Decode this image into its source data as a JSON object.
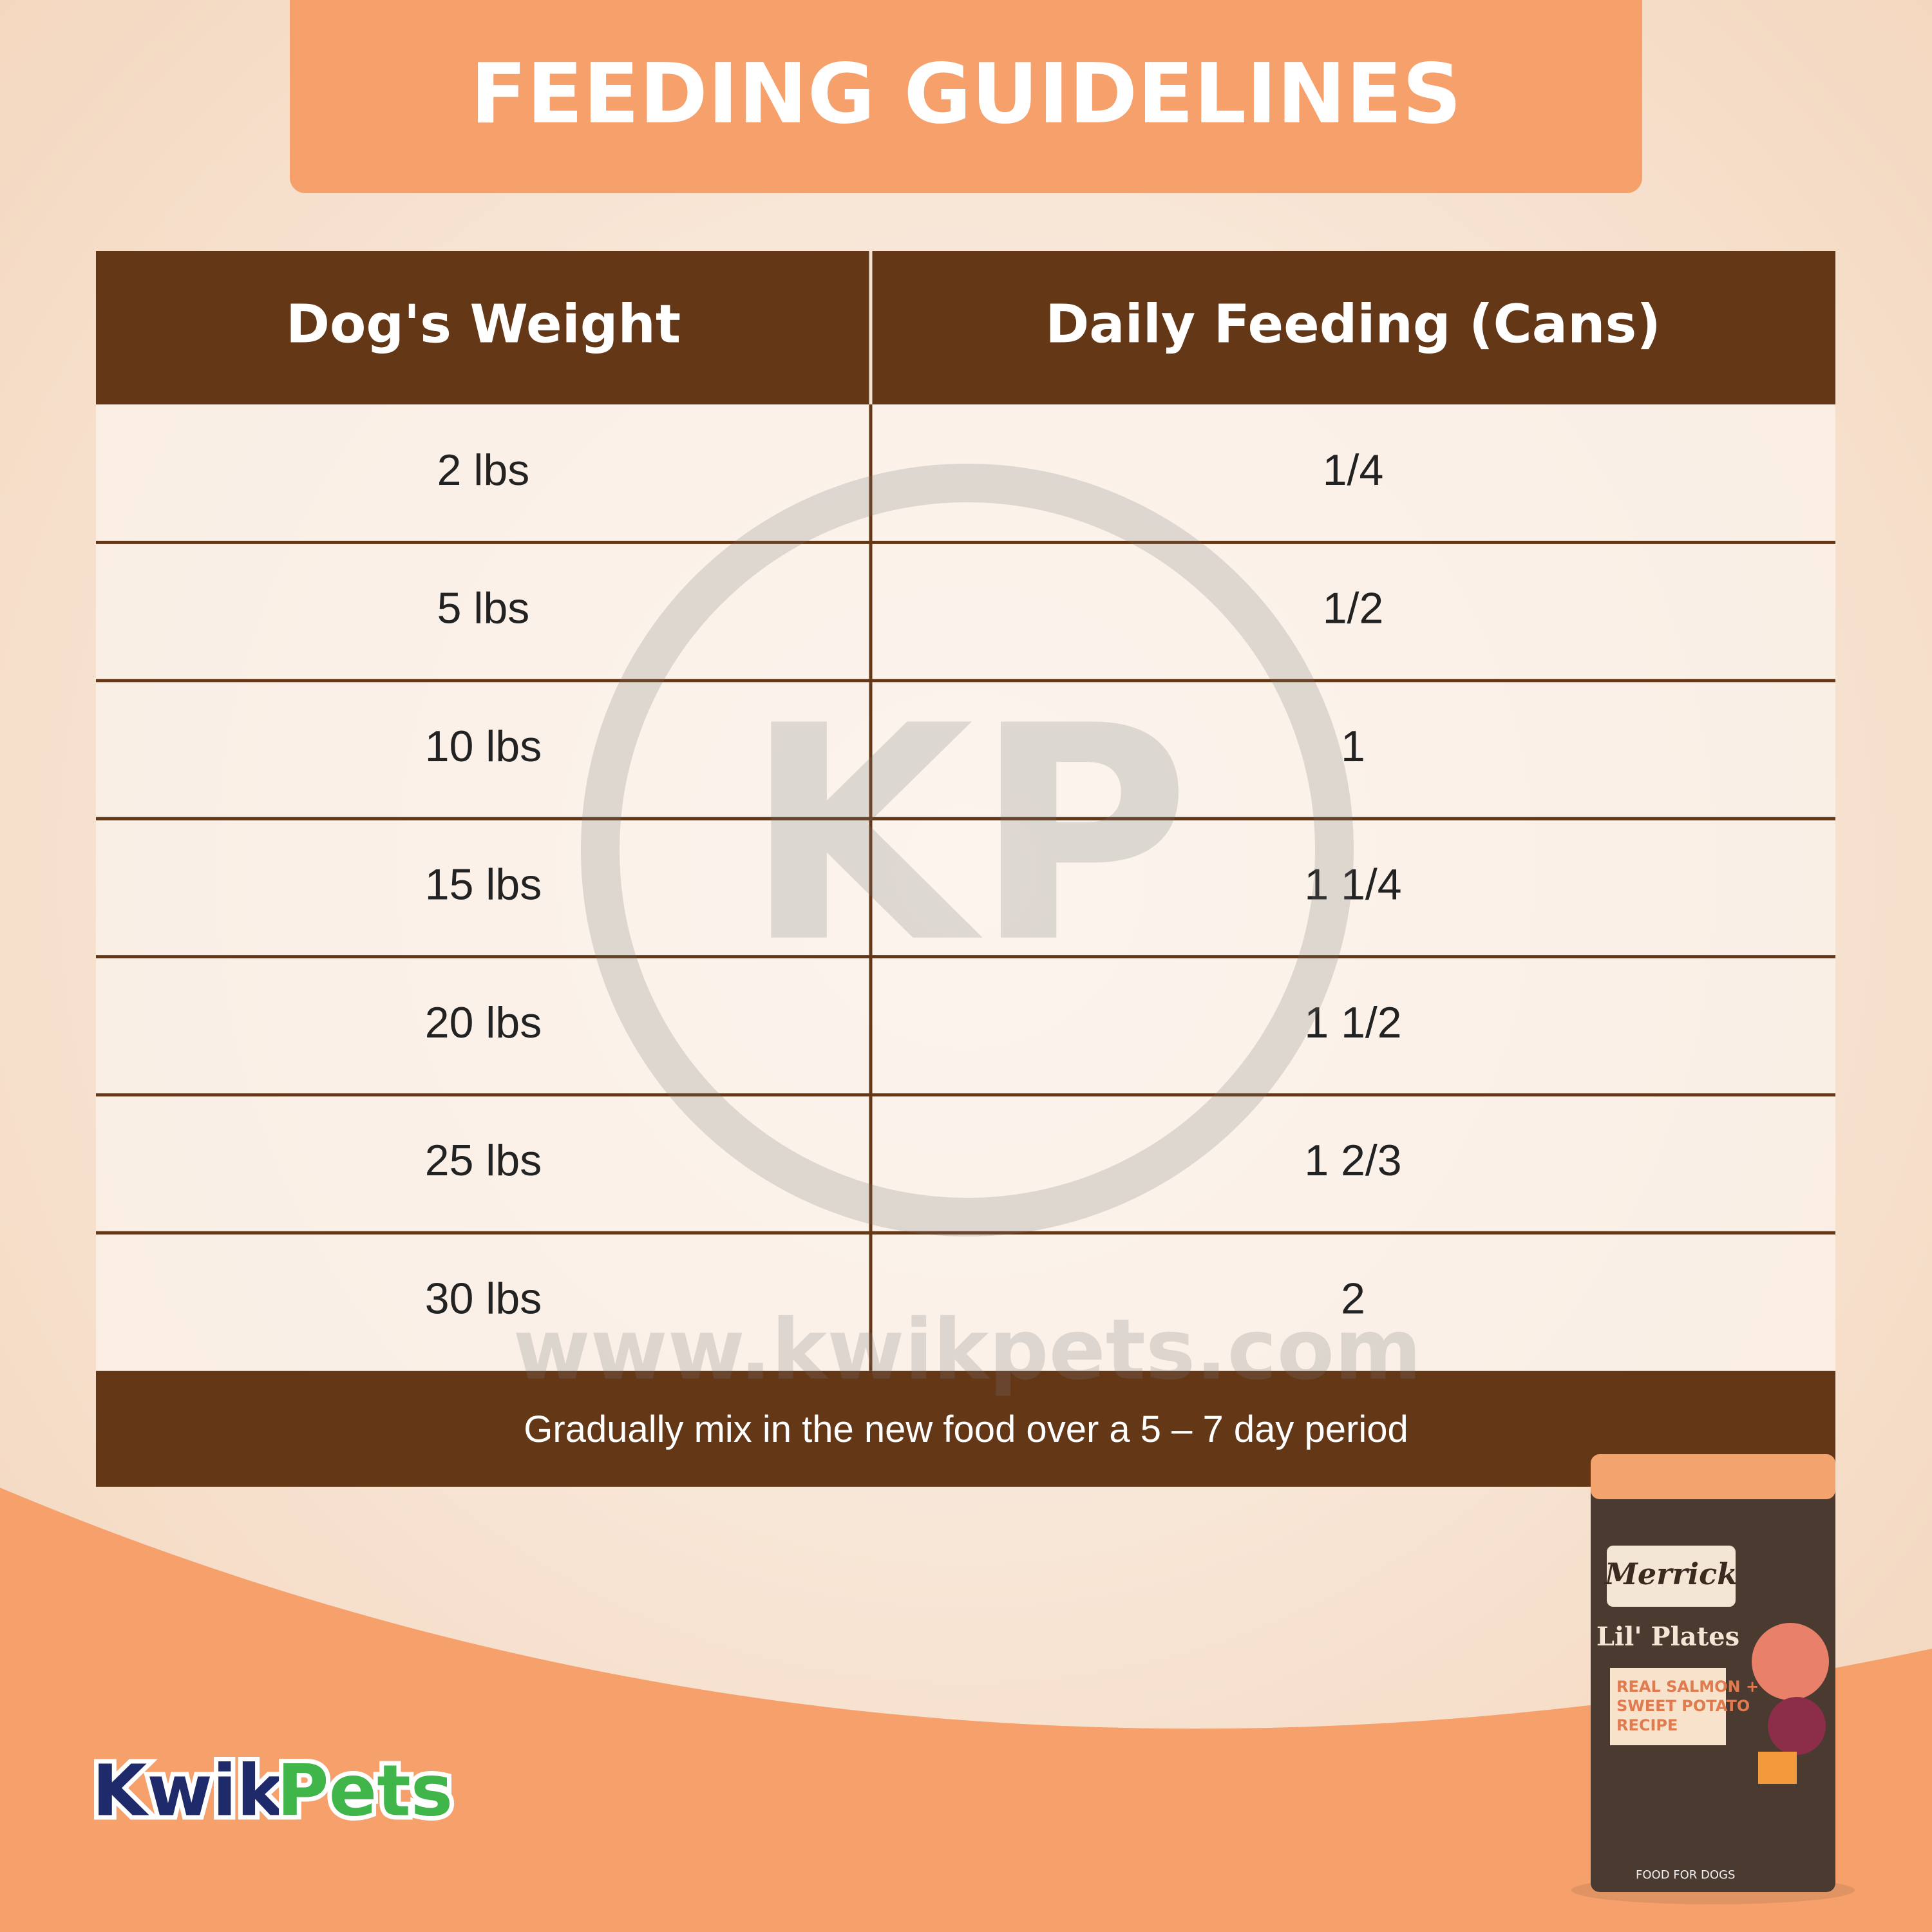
{
  "header": {
    "title": "FEEDING GUIDELINES"
  },
  "table": {
    "columns": [
      "Dog's Weight",
      "Daily Feeding (Cans)"
    ],
    "rows": [
      [
        "2 lbs",
        "1/4"
      ],
      [
        "5 lbs",
        "1/2"
      ],
      [
        "10 lbs",
        "1"
      ],
      [
        "15 lbs",
        "1 1/4"
      ],
      [
        "20 lbs",
        "1 1/2"
      ],
      [
        "25 lbs",
        "1 2/3"
      ],
      [
        "30 lbs",
        "2"
      ]
    ],
    "note": "Gradually mix in the new food over a 5 – 7 day period"
  },
  "watermark": {
    "monogram": "KP",
    "url": "www.kwikpets.com"
  },
  "logo": {
    "first": "Kwik",
    "second": "Pets"
  },
  "product": {
    "brand": "Merrick",
    "line": "Lil' Plates",
    "recipe": [
      "REAL SALMON +",
      "SWEET POTATO",
      "RECIPE"
    ],
    "footer": "FOOD FOR DOGS"
  }
}
